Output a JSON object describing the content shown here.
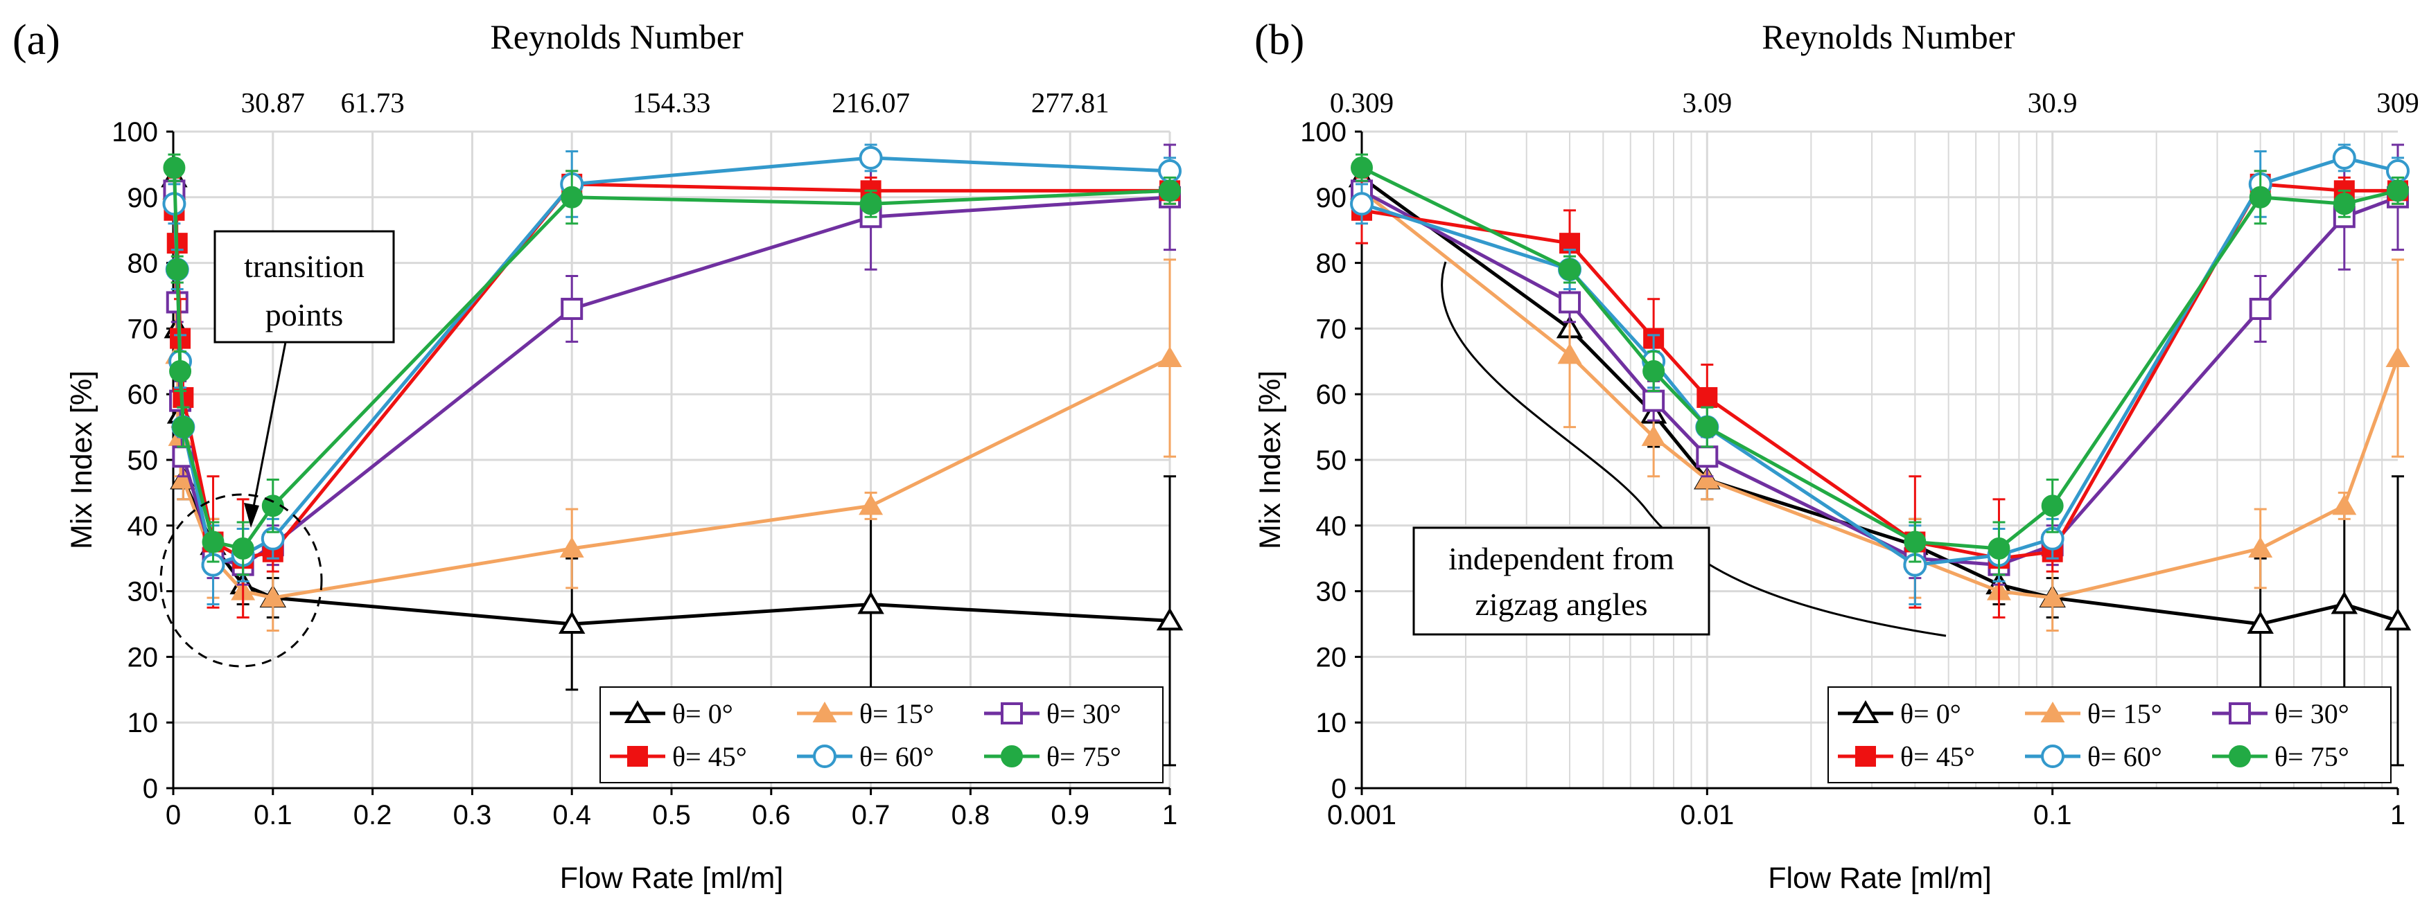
{
  "chart_data": [
    {
      "panel": "(a)",
      "type": "line",
      "x_scale": "linear",
      "xlabel": "Flow Rate [ml/m]",
      "ylabel": "Mix Index [%]",
      "xlim": [
        0,
        1
      ],
      "ylim": [
        0,
        100
      ],
      "x_ticks": [
        0,
        0.1,
        0.2,
        0.3,
        0.4,
        0.5,
        0.6,
        0.7,
        0.8,
        0.9,
        1
      ],
      "x_tick_labels": [
        "0",
        "0.1",
        "0.2",
        "0.3",
        "0.4",
        "0.5",
        "0.6",
        "0.7",
        "0.8",
        "0.9",
        "1"
      ],
      "y_ticks": [
        0,
        10,
        20,
        30,
        40,
        50,
        60,
        70,
        80,
        90,
        100
      ],
      "top_axis_title": "Reynolds Number",
      "top_axis": [
        {
          "x": 0.1,
          "label": "30.87"
        },
        {
          "x": 0.2,
          "label": "61.73"
        },
        {
          "x": 0.5,
          "label": "154.33"
        },
        {
          "x": 0.7,
          "label": "216.07"
        },
        {
          "x": 0.9,
          "label": "277.81"
        }
      ],
      "x": [
        0.001,
        0.004,
        0.007,
        0.01,
        0.04,
        0.07,
        0.1,
        0.4,
        0.7,
        1
      ],
      "series": [
        {
          "name": "θ= 0°",
          "color": "#000000",
          "marker": "triangle-open",
          "values": [
            93,
            70,
            57,
            47,
            37,
            31,
            29,
            25,
            28,
            25.5
          ],
          "errors": [
            2,
            5,
            5,
            3,
            4,
            3,
            3,
            10,
            14,
            22
          ]
        },
        {
          "name": "θ= 15°",
          "color": "#F4A460",
          "marker": "triangle-filled",
          "values": [
            91,
            66,
            53.5,
            47,
            35,
            30,
            29,
            36.5,
            43,
            65.5
          ],
          "errors": [
            3,
            11,
            6,
            3,
            6,
            4,
            5,
            6,
            2,
            15
          ]
        },
        {
          "name": "θ= 30°",
          "color": "#7030A0",
          "marker": "square-open",
          "values": [
            91,
            74,
            59,
            50.5,
            35,
            34,
            37,
            73,
            87,
            90
          ],
          "errors": [
            2,
            3,
            3,
            3,
            3,
            3,
            3,
            5,
            8,
            8
          ]
        },
        {
          "name": "θ= 45°",
          "color": "#EE1111",
          "marker": "square-filled",
          "values": [
            88,
            83,
            68.5,
            59.5,
            37.5,
            35,
            36,
            92,
            91,
            91
          ],
          "errors": [
            5,
            5,
            6,
            5,
            10,
            9,
            3,
            2,
            2,
            2
          ]
        },
        {
          "name": "θ= 60°",
          "color": "#3399CC",
          "marker": "circle-open",
          "values": [
            89,
            79,
            65,
            55,
            34,
            35.5,
            38,
            92,
            96,
            94
          ],
          "errors": [
            3,
            3,
            4,
            3,
            6,
            4,
            3,
            5,
            2,
            2
          ]
        },
        {
          "name": "θ= 75°",
          "color": "#22AA44",
          "marker": "circle-filled",
          "values": [
            94.5,
            79,
            63.5,
            55,
            37.5,
            36.5,
            43,
            90,
            89,
            91
          ],
          "errors": [
            2,
            2,
            3,
            3,
            3,
            4,
            4,
            4,
            2,
            2
          ]
        }
      ],
      "annotation": {
        "lines": [
          "transition",
          "points"
        ]
      }
    },
    {
      "panel": "(b)",
      "type": "line",
      "x_scale": "log",
      "xlabel": "Flow Rate [ml/m]",
      "ylabel": "Mix Index [%]",
      "xlim": [
        0.001,
        1
      ],
      "ylim": [
        0,
        100
      ],
      "x_ticks": [
        0.001,
        0.01,
        0.1,
        1
      ],
      "x_tick_labels": [
        "0.001",
        "0.01",
        "0.1",
        "1"
      ],
      "y_ticks": [
        0,
        10,
        20,
        30,
        40,
        50,
        60,
        70,
        80,
        90,
        100
      ],
      "top_axis_title": "Reynolds Number",
      "top_axis": [
        {
          "x": 0.001,
          "label": "0.309"
        },
        {
          "x": 0.01,
          "label": "3.09"
        },
        {
          "x": 0.1,
          "label": "30.9"
        },
        {
          "x": 1,
          "label": "309"
        }
      ],
      "x": [
        0.001,
        0.004,
        0.007,
        0.01,
        0.04,
        0.07,
        0.1,
        0.4,
        0.7,
        1
      ],
      "series": [
        {
          "name": "θ= 0°",
          "color": "#000000",
          "marker": "triangle-open",
          "values": [
            93,
            70,
            57,
            47,
            37,
            31,
            29,
            25,
            28,
            25.5
          ],
          "errors": [
            2,
            5,
            5,
            3,
            4,
            3,
            3,
            10,
            14,
            22
          ]
        },
        {
          "name": "θ= 15°",
          "color": "#F4A460",
          "marker": "triangle-filled",
          "values": [
            91,
            66,
            53.5,
            47,
            35,
            30,
            29,
            36.5,
            43,
            65.5
          ],
          "errors": [
            3,
            11,
            6,
            3,
            6,
            4,
            5,
            6,
            2,
            15
          ]
        },
        {
          "name": "θ= 30°",
          "color": "#7030A0",
          "marker": "square-open",
          "values": [
            91,
            74,
            59,
            50.5,
            35,
            34,
            37,
            73,
            87,
            90
          ],
          "errors": [
            2,
            3,
            3,
            3,
            3,
            3,
            3,
            5,
            8,
            8
          ]
        },
        {
          "name": "θ= 45°",
          "color": "#EE1111",
          "marker": "square-filled",
          "values": [
            88,
            83,
            68.5,
            59.5,
            37.5,
            35,
            36,
            92,
            91,
            91
          ],
          "errors": [
            5,
            5,
            6,
            5,
            10,
            9,
            3,
            2,
            2,
            2
          ]
        },
        {
          "name": "θ= 60°",
          "color": "#3399CC",
          "marker": "circle-open",
          "values": [
            89,
            79,
            65,
            55,
            34,
            35.5,
            38,
            92,
            96,
            94
          ],
          "errors": [
            3,
            3,
            4,
            3,
            6,
            4,
            3,
            5,
            2,
            2
          ]
        },
        {
          "name": "θ= 75°",
          "color": "#22AA44",
          "marker": "circle-filled",
          "values": [
            94.5,
            79,
            63.5,
            55,
            37.5,
            36.5,
            43,
            90,
            89,
            91
          ],
          "errors": [
            2,
            2,
            3,
            3,
            3,
            4,
            4,
            4,
            2,
            2
          ]
        }
      ],
      "annotation": {
        "lines": [
          "independent from",
          "zigzag angles"
        ]
      }
    }
  ]
}
